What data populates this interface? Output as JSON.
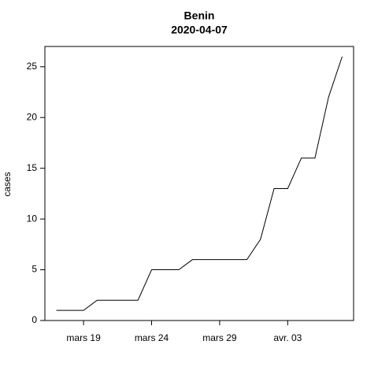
{
  "chart_data": {
    "type": "line",
    "title": "Benin",
    "subtitle": "2020-04-07",
    "y_label": "cases",
    "categories": [
      null,
      null,
      "mars 19",
      null,
      null,
      null,
      null,
      "mars 24",
      null,
      null,
      null,
      null,
      "mars 29",
      null,
      null,
      null,
      null,
      "avr. 03",
      null,
      null,
      null,
      null
    ],
    "values": [
      1,
      1,
      1,
      2,
      2,
      2,
      2,
      5,
      5,
      5,
      6,
      6,
      6,
      6,
      6,
      8,
      13,
      13,
      16,
      16,
      22,
      26
    ],
    "color": "#000000",
    "ylim": [
      0,
      27
    ],
    "yticks": [
      0,
      5,
      10,
      15,
      20,
      25
    ],
    "grid": false
  }
}
